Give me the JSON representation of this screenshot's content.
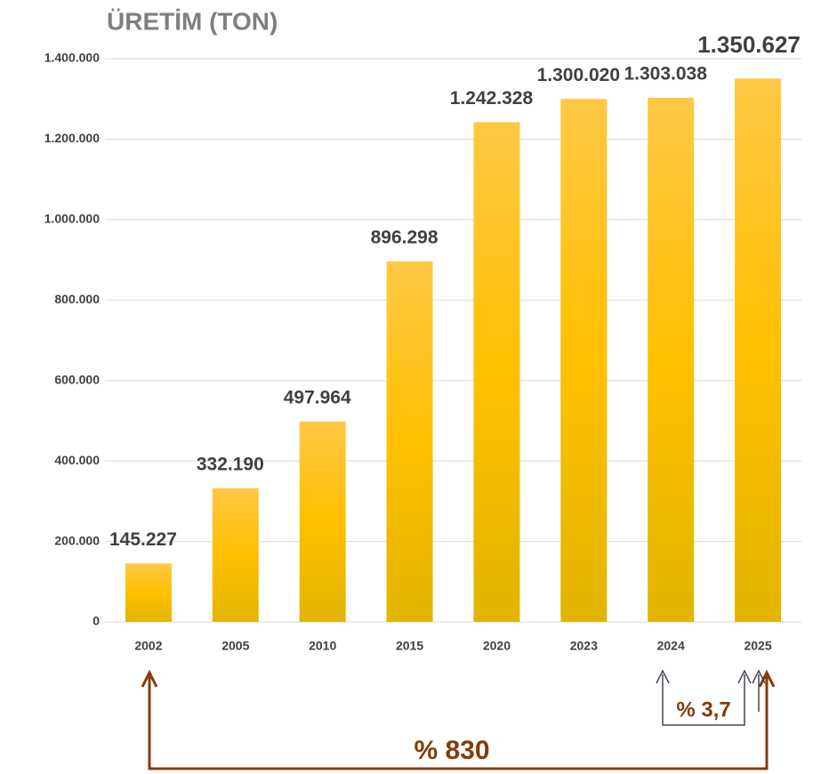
{
  "chart_data": {
    "type": "bar",
    "title": "ÜRETİM (TON)",
    "categories": [
      "2002",
      "2005",
      "2010",
      "2015",
      "2020",
      "2023",
      "2024",
      "2025"
    ],
    "values": [
      145227,
      332190,
      497964,
      896298,
      1242328,
      1300020,
      1303038,
      1350627
    ],
    "value_labels": [
      "145.227",
      "332.190",
      "497.964",
      "896.298",
      "1.242.328",
      "1.300.020",
      "1.303.038",
      "1.350.627"
    ],
    "color": "#FFC000",
    "ylim": [
      0,
      1400000
    ],
    "yticks": [
      0,
      {
        "value": 200000,
        "label": "200.000"
      },
      {
        "value": 400000,
        "label": "400.000"
      },
      {
        "value": 600000,
        "label": "600.000"
      },
      {
        "value": 800000,
        "label": "800.000"
      },
      {
        "value": 1000000,
        "label": "1.000.000"
      },
      {
        "value": 1200000,
        "label": "1.200.000"
      },
      {
        "value": 1400000,
        "label": "1.400.000"
      }
    ],
    "grid": true,
    "annotations": [
      "% 830",
      "% 3,7"
    ]
  }
}
